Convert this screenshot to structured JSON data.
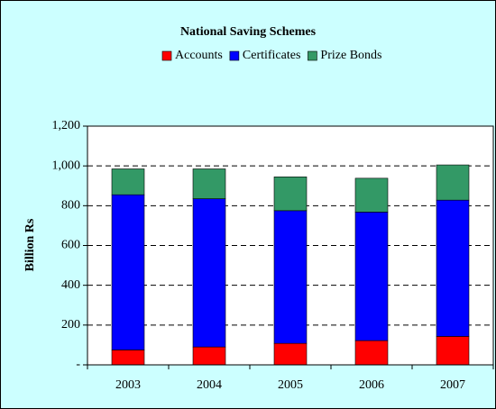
{
  "chart_data": {
    "type": "stacked_bar",
    "title": "National Saving Schemes",
    "y_label": "Billion Rs",
    "categories": [
      "2003",
      "2004",
      "2005",
      "2006",
      "2007"
    ],
    "series": [
      {
        "name": "Accounts",
        "color": "#ff0000",
        "values": [
          75,
          90,
          108,
          122,
          143
        ]
      },
      {
        "name": "Certificates",
        "color": "#0000ff",
        "values": [
          780,
          745,
          667,
          646,
          685
        ]
      },
      {
        "name": "Prize Bonds",
        "color": "#339966",
        "values": [
          130,
          150,
          170,
          170,
          177
        ]
      }
    ],
    "ylim": [
      0,
      1200
    ],
    "yticks": [
      {
        "value": 0,
        "label": "-"
      },
      200,
      400,
      600,
      800,
      {
        "value": 1000,
        "label": "1,000"
      },
      {
        "value": 1200,
        "label": "1,200"
      }
    ],
    "grid": true,
    "legend": "top"
  }
}
